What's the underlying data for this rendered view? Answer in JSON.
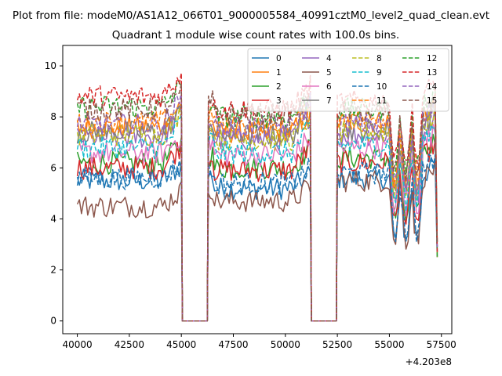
{
  "suptitle": "Plot from file: modeM0/AS1A12_066T01_9000005584_40991cztM0_level2_quad_clean.evt",
  "chart_data": {
    "type": "line",
    "title": "Quadrant 1 module wise count rates with 100.0s bins.",
    "xlabel": "",
    "ylabel": "",
    "x_offset_label": "+4.203e8",
    "xlim": [
      39300,
      58000
    ],
    "ylim": [
      -0.5,
      10.8
    ],
    "xticks": [
      40000,
      42500,
      45000,
      47500,
      50000,
      52500,
      55000,
      57500
    ],
    "xtick_labels": [
      "40000",
      "42500",
      "45000",
      "47500",
      "50000",
      "52500",
      "55000",
      "57500"
    ],
    "yticks": [
      0,
      2,
      4,
      6,
      8,
      10
    ],
    "ytick_labels": [
      "0",
      "2",
      "4",
      "6",
      "8",
      "10"
    ],
    "bin_seconds": 100,
    "segments": [
      [
        40000,
        45000
      ],
      [
        46300,
        51200
      ],
      [
        52500,
        57300
      ]
    ],
    "legend": {
      "placement": "top-right",
      "columns": 4
    },
    "series": [
      {
        "name": "0",
        "color": "#1f77b4",
        "dash": false,
        "level": 5.5,
        "seg2": 5.2,
        "seg3": 5.6
      },
      {
        "name": "1",
        "color": "#ff7f0e",
        "dash": false,
        "level": 7.6,
        "seg2": 7.4,
        "seg3": 7.8
      },
      {
        "name": "2",
        "color": "#2ca02c",
        "dash": false,
        "level": 6.2,
        "seg2": 6.0,
        "seg3": 6.4
      },
      {
        "name": "3",
        "color": "#d62728",
        "dash": false,
        "level": 6.0,
        "seg2": 5.9,
        "seg3": 6.2
      },
      {
        "name": "4",
        "color": "#9467bd",
        "dash": false,
        "level": 7.2,
        "seg2": 7.1,
        "seg3": 7.3
      },
      {
        "name": "5",
        "color": "#8c564b",
        "dash": false,
        "level": 4.5,
        "seg2": 4.7,
        "seg3": 5.5
      },
      {
        "name": "6",
        "color": "#e377c2",
        "dash": false,
        "level": 6.6,
        "seg2": 6.5,
        "seg3": 6.8
      },
      {
        "name": "7",
        "color": "#7f7f7f",
        "dash": false,
        "level": 7.4,
        "seg2": 7.3,
        "seg3": 7.5
      },
      {
        "name": "8",
        "color": "#bcbd22",
        "dash": true,
        "level": 7.3,
        "seg2": 7.1,
        "seg3": 7.4
      },
      {
        "name": "9",
        "color": "#17becf",
        "dash": true,
        "level": 6.8,
        "seg2": 6.6,
        "seg3": 6.9
      },
      {
        "name": "10",
        "color": "#1f77b4",
        "dash": true,
        "level": 5.6,
        "seg2": 5.4,
        "seg3": 5.8
      },
      {
        "name": "11",
        "color": "#ff7f0e",
        "dash": true,
        "level": 7.8,
        "seg2": 7.6,
        "seg3": 7.9
      },
      {
        "name": "12",
        "color": "#2ca02c",
        "dash": true,
        "level": 8.4,
        "seg2": 8.0,
        "seg3": 8.3
      },
      {
        "name": "13",
        "color": "#d62728",
        "dash": true,
        "level": 8.8,
        "seg2": 8.3,
        "seg3": 8.6
      },
      {
        "name": "14",
        "color": "#9467bd",
        "dash": true,
        "level": 7.7,
        "seg2": 7.6,
        "seg3": 7.7
      },
      {
        "name": "15",
        "color": "#8c564b",
        "dash": true,
        "level": 8.3,
        "seg2": 8.1,
        "seg3": 8.2
      }
    ]
  }
}
